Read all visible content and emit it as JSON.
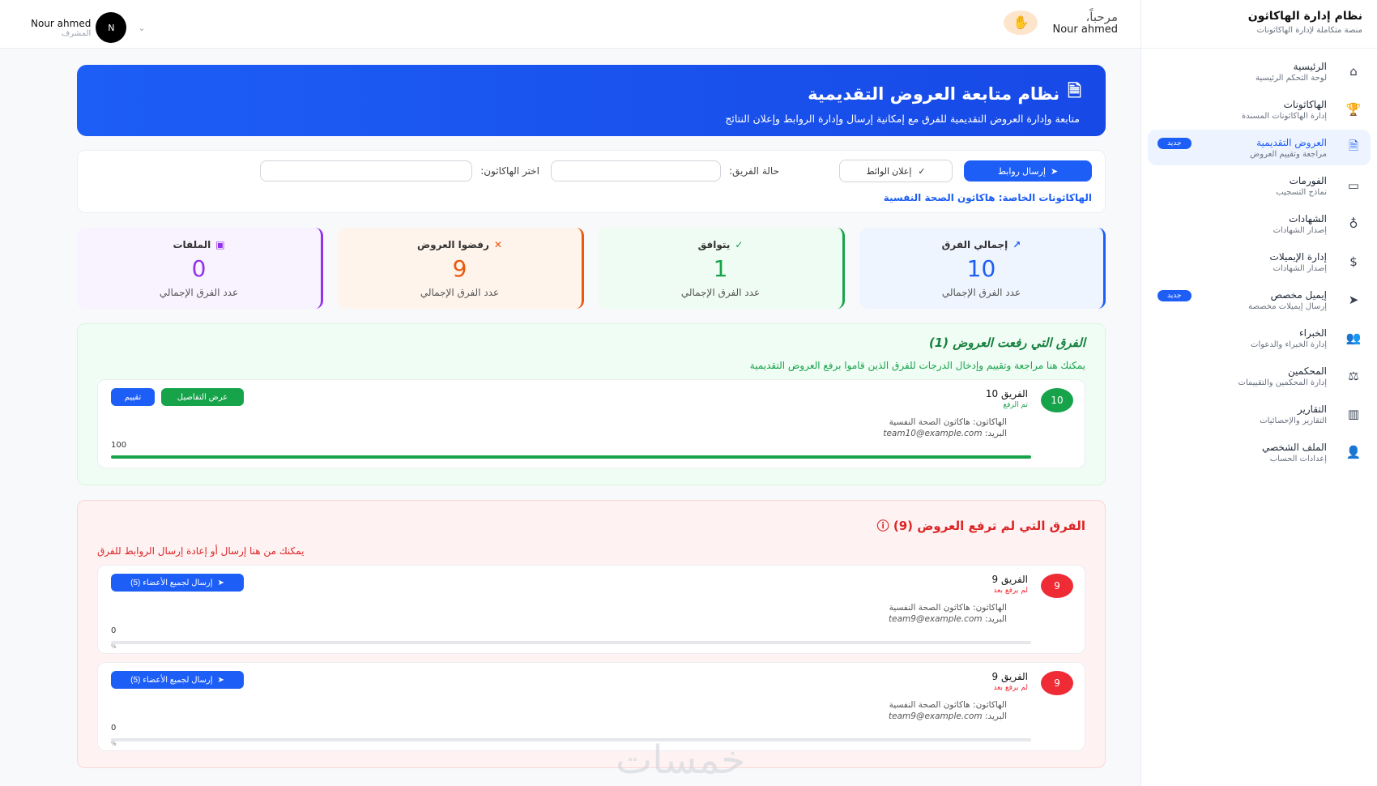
{
  "header": {
    "user_name": "Nour ahmed",
    "user_role": "المشرف",
    "avatar_initial": "N",
    "greeting": "مرحباً،",
    "greeting_name": "Nour ahmed"
  },
  "sidebar": {
    "title": "نظام إدارة الهاكاثون",
    "subtitle": "منصة متكاملة لإدارة الهاكاثونات",
    "items": [
      {
        "label": "الرئيسية",
        "desc": "لوحة التحكم الرئيسية",
        "icon": "home"
      },
      {
        "label": "الهاكاثونات",
        "desc": "إدارة الهاكاثونات المسندة",
        "icon": "trophy"
      },
      {
        "label": "العروض التقديمية",
        "desc": "مراجعة وتقييم العروض",
        "icon": "document",
        "badge": "جديد",
        "active": true
      },
      {
        "label": "الفورمات",
        "desc": "نماذج التسجيب",
        "icon": "calendar"
      },
      {
        "label": "الشهادات",
        "desc": "إصدار الشهادات",
        "icon": "award"
      },
      {
        "label": "إدارة الإيميلات",
        "desc": "إصدار الشهادات",
        "icon": "dollar-box"
      },
      {
        "label": "إيميل مخصص",
        "desc": "إرسال إيميلات مخصصة",
        "icon": "send",
        "badge": "جديد"
      },
      {
        "label": "الخبراء",
        "desc": "إدارة الخبراء والدعوات",
        "icon": "users"
      },
      {
        "label": "المحكمين",
        "desc": "إدارة المحكمين والتقييمات",
        "icon": "scale"
      },
      {
        "label": "التقارير",
        "desc": "التقارير والإحصائيات",
        "icon": "bar-chart"
      },
      {
        "label": "الملف الشخصي",
        "desc": "إعدادات الحساب",
        "icon": "user"
      }
    ]
  },
  "banner": {
    "title": "نظام متابعة العروض التقديمية",
    "subtitle": "متابعة وإدارة العروض التقديمية للفرق مع إمكانية إرسال وإدارة الروابط وإعلان النتائج"
  },
  "filters": {
    "send_links": "إرسال روابط",
    "announce": "إعلان الوائط",
    "team_status_label": "حالة الفريق:",
    "hackathon_label": "اختر الهاكاثون:",
    "team_status_value": "",
    "hackathon_value": "",
    "private": "الهاكاثونات الخاصة: هاكاثون الصحة النفسية"
  },
  "stats": [
    {
      "label": "إجمالي الفرق",
      "value": "10",
      "sub": "عدد الفرق الإجمالي",
      "color": "#1d5ef6",
      "bg": "#eff5ff",
      "icon": "trending-up"
    },
    {
      "label": "يتوافق",
      "value": "1",
      "sub": "عدد الفرق الإجمالي",
      "color": "#16a34a",
      "bg": "#effcf3",
      "icon": "check-circle"
    },
    {
      "label": "رفضوا العروض",
      "value": "9",
      "sub": "عدد الفرق الإجمالي",
      "color": "#ea580c",
      "bg": "#fff4ec",
      "icon": "x"
    },
    {
      "label": "الملفات",
      "value": "0",
      "sub": "عدد الفرق الإجمالي",
      "color": "#9333ea",
      "bg": "#f8f3ff",
      "icon": "file-x"
    }
  ],
  "uploaded": {
    "title": "الفرق التي رفعت العروض (1)",
    "desc": "يمكنك هنا مراجعة وتقييم وإدخال الدرجات للفرق الذين قاموا برفع العروض التقديمية",
    "teams": [
      {
        "num": "10",
        "name": "الفريق 10",
        "status": "تم الرفع",
        "hackathon": "الهاكاثون: هاكاثون الصحة النفسية",
        "email_label": "البريد:",
        "email": "team10@example.com",
        "score": "100",
        "progress": 100,
        "details": "عرض التفاصيل",
        "rate": "تقييم"
      }
    ]
  },
  "pending": {
    "title": "الفرق التي لم ترفع العروض (9)",
    "desc": "يمكنك من هنا إرسال أو إعادة إرسال الروابط للفرق",
    "teams": [
      {
        "num": "9",
        "name": "الفريق 9",
        "status": "لم يرفع بعد",
        "hackathon": "الهاكاثون: هاكاثون الصحة النفسية",
        "email_label": "البريد:",
        "email": "team9@example.com",
        "score": "0",
        "progress": 0,
        "pct": "%",
        "send": "إرسال لجميع الأعضاء (5)"
      },
      {
        "num": "9",
        "name": "الفريق 9",
        "status": "لم يرفع بعد",
        "hackathon": "الهاكاثون: هاكاثون الصحة النفسية",
        "email_label": "البريد:",
        "email": "team9@example.com",
        "score": "0",
        "progress": 0,
        "pct": "%",
        "send": "إرسال لجميع الأعضاء (5)"
      }
    ]
  },
  "watermark": "خمسات"
}
